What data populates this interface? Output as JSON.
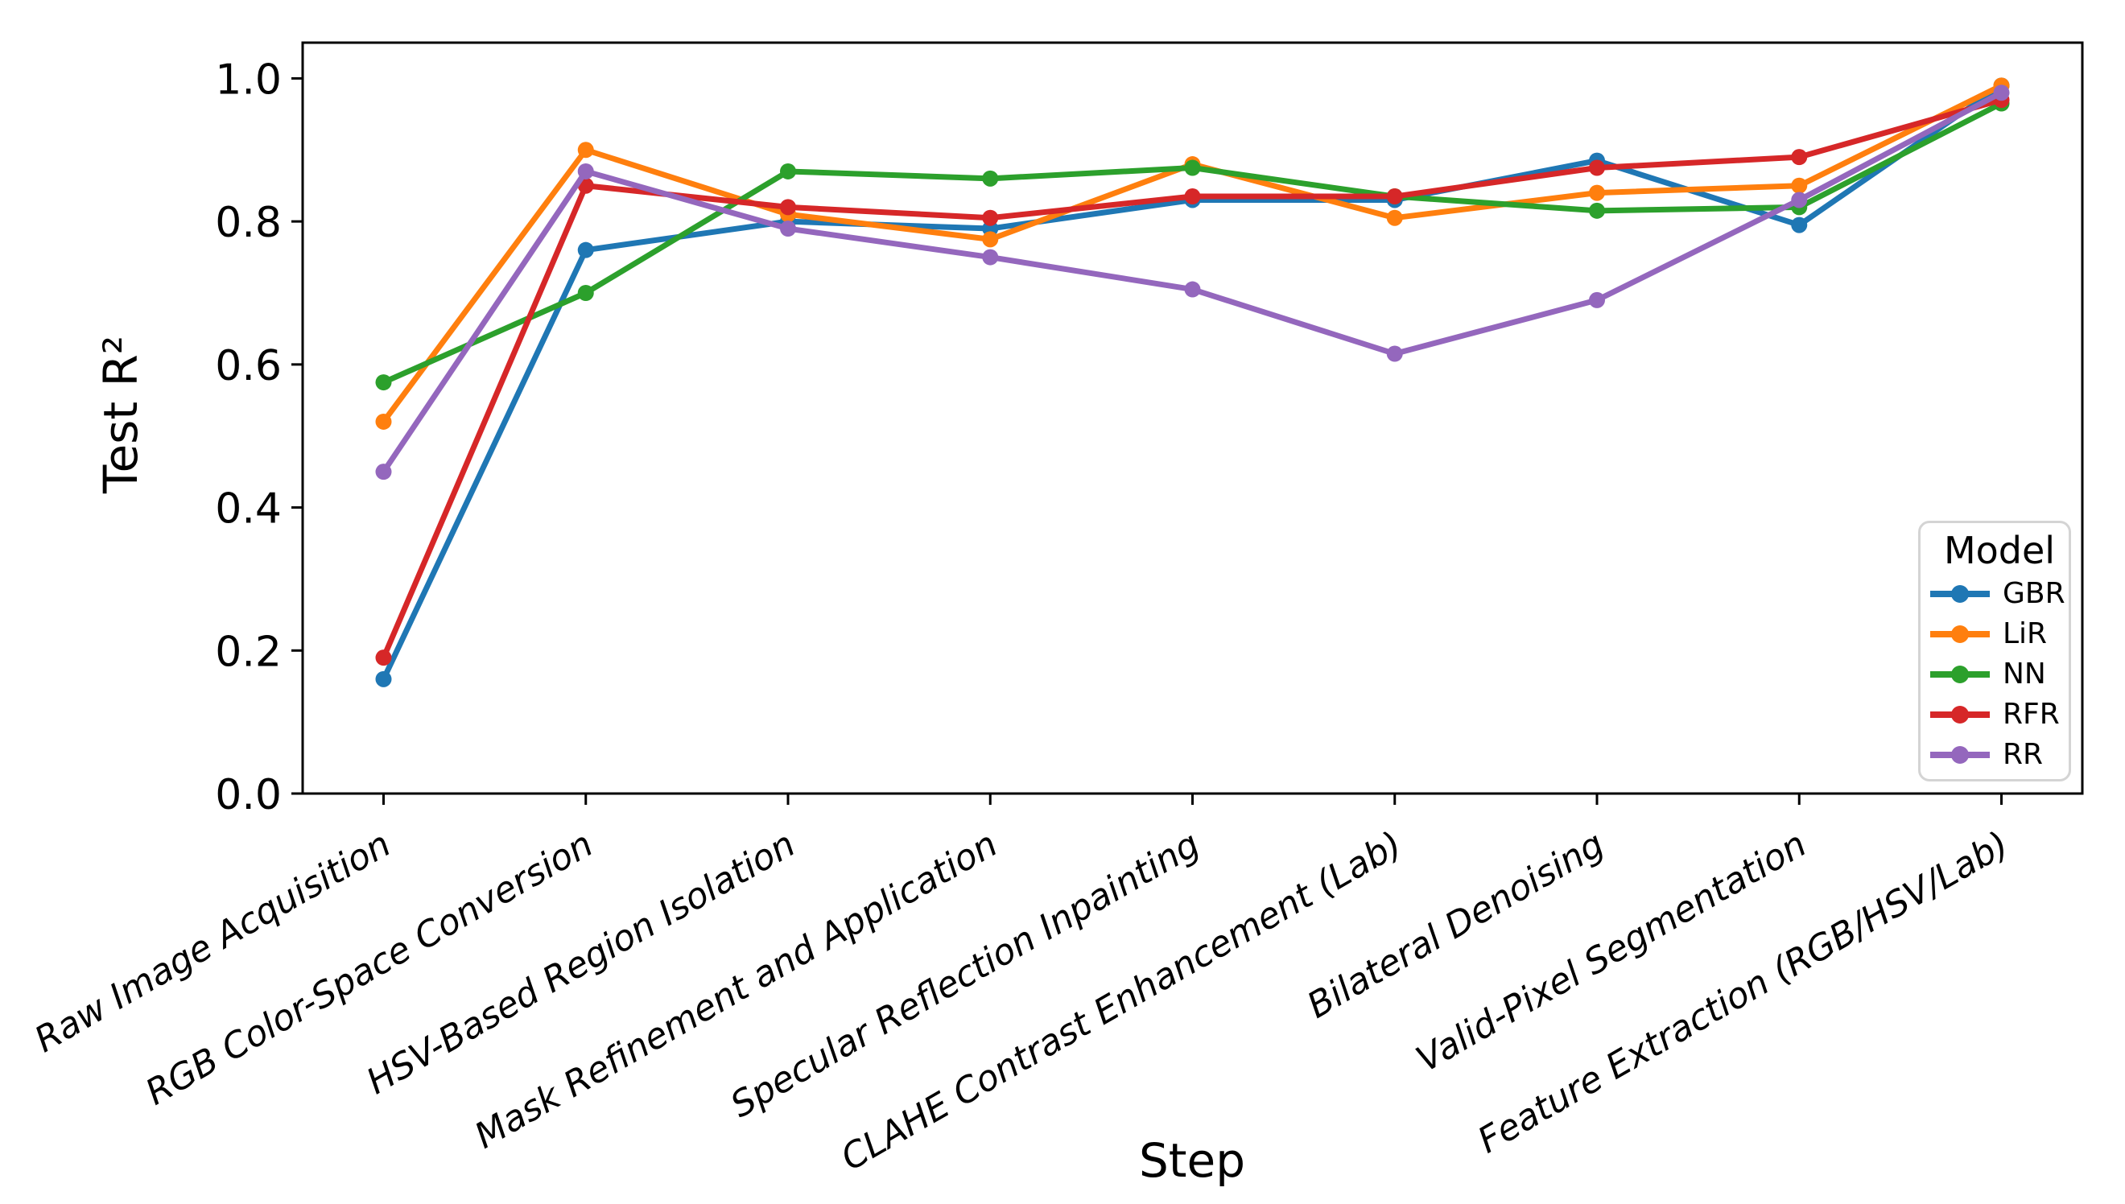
{
  "figure": {
    "ylabel": "Test R²",
    "xlabel": "Step",
    "legend": {
      "title": "Model"
    }
  },
  "chart_data": {
    "type": "line",
    "title": "",
    "xlabel": "Step",
    "ylabel": "Test R²",
    "categories": [
      "Raw Image Acquisition",
      "RGB Color-Space Conversion",
      "HSV-Based Region Isolation",
      "Mask Refinement and Application",
      "Specular Reflection Inpainting",
      "CLAHE Contrast Enhancement (Lab)",
      "Bilateral Denoising",
      "Valid-Pixel Segmentation",
      "Feature Extraction (RGB/HSV/Lab)"
    ],
    "series": [
      {
        "name": "GBR",
        "color": "#1f77b4",
        "values": [
          0.16,
          0.76,
          0.8,
          0.79,
          0.83,
          0.83,
          0.885,
          0.795,
          0.99
        ]
      },
      {
        "name": "LiR",
        "color": "#ff7f0e",
        "values": [
          0.52,
          0.9,
          0.81,
          0.775,
          0.88,
          0.805,
          0.84,
          0.85,
          0.99
        ]
      },
      {
        "name": "NN",
        "color": "#2ca02c",
        "values": [
          0.575,
          0.7,
          0.87,
          0.86,
          0.875,
          0.835,
          0.815,
          0.82,
          0.965
        ]
      },
      {
        "name": "RFR",
        "color": "#d62728",
        "values": [
          0.19,
          0.85,
          0.82,
          0.805,
          0.835,
          0.835,
          0.875,
          0.89,
          0.97
        ]
      },
      {
        "name": "RR",
        "color": "#9467bd",
        "values": [
          0.45,
          0.87,
          0.79,
          0.75,
          0.705,
          0.615,
          0.69,
          0.83,
          0.98
        ]
      }
    ],
    "y_ticks": [
      "0.0",
      "0.2",
      "0.4",
      "0.6",
      "0.8",
      "1.0"
    ],
    "ylim": [
      0,
      1.05
    ],
    "xlim": [
      -0.4,
      8.4
    ],
    "grid": false,
    "legend_position": "lower right",
    "marker": "o",
    "x_tick_style": "italic, rotated 30deg, right-anchored"
  }
}
